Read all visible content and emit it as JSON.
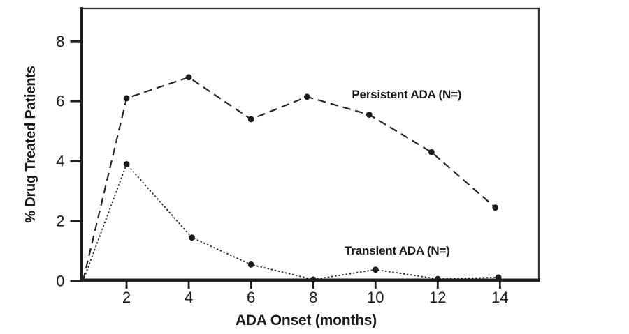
{
  "figure": {
    "background_color": "#ffffff",
    "ink_color": "#262626",
    "text_color": "#1a1a1a",
    "border_color": "#333333"
  },
  "chart_data": {
    "type": "line",
    "title": "",
    "xlabel": "ADA Onset (months)",
    "ylabel": "% Drug Treated Patients",
    "xlim": [
      0.55,
      15.25
    ],
    "ylim": [
      0,
      9.1
    ],
    "xticks": [
      2,
      4,
      6,
      8,
      10,
      12,
      14
    ],
    "yticks": [
      0,
      2,
      4,
      6,
      8
    ],
    "grid": false,
    "legend_position": "inline-annotations",
    "series": [
      {
        "name": "Persistent ADA (N=)",
        "line_style": "dashed",
        "marker": "circle",
        "color": "#262626",
        "x": [
          0.6,
          2,
          4,
          6,
          7.8,
          9.8,
          11.8,
          13.85
        ],
        "values": [
          0,
          6.1,
          6.8,
          5.4,
          6.15,
          5.55,
          4.3,
          2.45
        ],
        "annotation": {
          "text": "Persistent ADA (N=)",
          "anchor_x": 11.0,
          "anchor_y": 6.1
        }
      },
      {
        "name": "Transient ADA (N=)",
        "line_style": "dotted",
        "marker": "circle",
        "color": "#262626",
        "x": [
          0.6,
          2,
          4.1,
          6,
          8,
          10,
          12,
          13.95
        ],
        "values": [
          0,
          3.9,
          1.45,
          0.55,
          0.05,
          0.38,
          0.07,
          0.12
        ],
        "annotation": {
          "text": "Transient ADA (N=)",
          "anchor_x": 10.7,
          "anchor_y": 0.88
        }
      }
    ]
  }
}
